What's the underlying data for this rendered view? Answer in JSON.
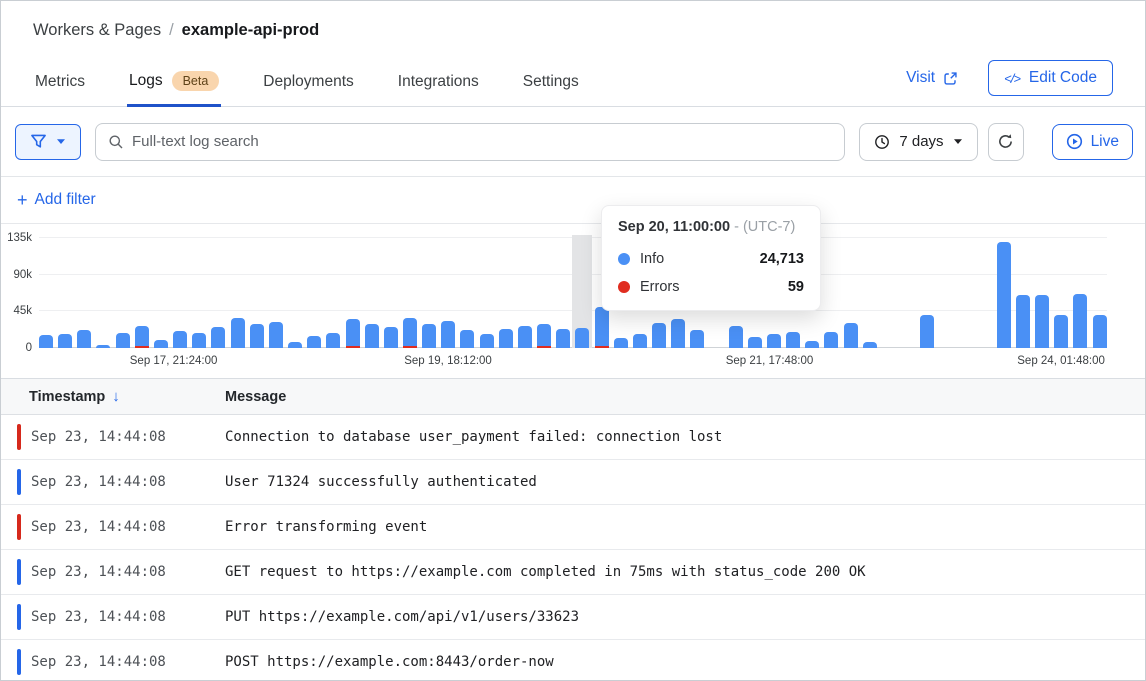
{
  "header": {
    "breadcrumb": {
      "section": "Workers & Pages",
      "separator": "/",
      "current": "example-api-prod"
    },
    "tabs": [
      {
        "label": "Metrics",
        "active": false
      },
      {
        "label": "Logs",
        "badge": "Beta",
        "active": true
      },
      {
        "label": "Deployments",
        "active": false
      },
      {
        "label": "Integrations",
        "active": false
      },
      {
        "label": "Settings",
        "active": false
      }
    ],
    "visit_label": "Visit",
    "edit_code_label": "Edit Code",
    "edit_code_icon": "</>"
  },
  "toolbar": {
    "search_placeholder": "Full-text log search",
    "time_range_label": "7 days",
    "live_label": "Live",
    "add_filter": {
      "icon": "+",
      "label": "Add filter"
    }
  },
  "chart_data": {
    "type": "bar",
    "stacked": true,
    "unit": "thousands of log events",
    "ylim": [
      0,
      139
    ],
    "grid": true,
    "y_ticks": [
      {
        "label": "135k",
        "value": 135
      },
      {
        "label": "90k",
        "value": 90
      },
      {
        "label": "45k",
        "value": 45
      },
      {
        "label": "0",
        "value": 0
      }
    ],
    "x_tick_labels": [
      {
        "label": "Sep 17, 21:24:00",
        "position_pct": 12.6
      },
      {
        "label": "Sep 19, 18:12:00",
        "position_pct": 38.3
      },
      {
        "label": "Sep 21, 17:48:00",
        "position_pct": 68.4
      },
      {
        "label": "Sep 24, 01:48:00",
        "position_pct": 95.7
      }
    ],
    "series_legend": [
      {
        "name": "Info",
        "color": "#4a90f5"
      },
      {
        "name": "Errors",
        "color": "#e02d20"
      }
    ],
    "hover_index": 28,
    "bars": [
      {
        "v": 16
      },
      {
        "v": 17
      },
      {
        "v": 22
      },
      {
        "v": 4
      },
      {
        "v": 19
      },
      {
        "v": 27,
        "err": 2
      },
      {
        "v": 10
      },
      {
        "v": 21
      },
      {
        "v": 19
      },
      {
        "v": 26
      },
      {
        "v": 37
      },
      {
        "v": 30
      },
      {
        "v": 32
      },
      {
        "v": 7
      },
      {
        "v": 15
      },
      {
        "v": 18
      },
      {
        "v": 35,
        "err": 2
      },
      {
        "v": 29
      },
      {
        "v": 26
      },
      {
        "v": 36,
        "err": 2
      },
      {
        "v": 30
      },
      {
        "v": 33
      },
      {
        "v": 22
      },
      {
        "v": 17
      },
      {
        "v": 24
      },
      {
        "v": 27
      },
      {
        "v": 29,
        "err": 2
      },
      {
        "v": 23
      },
      {
        "v": 25
      },
      {
        "v": 50,
        "err": 3
      },
      {
        "v": 12
      },
      {
        "v": 17
      },
      {
        "v": 31
      },
      {
        "v": 36
      },
      {
        "v": 22
      },
      {
        "v": null
      },
      {
        "v": 27
      },
      {
        "v": 13
      },
      {
        "v": 17
      },
      {
        "v": 20
      },
      {
        "v": 9
      },
      {
        "v": 20
      },
      {
        "v": 31
      },
      {
        "v": 8
      },
      {
        "v": null
      },
      {
        "v": null
      },
      {
        "v": 40
      },
      {
        "v": null
      },
      {
        "v": null
      },
      {
        "v": null
      },
      {
        "v": 130
      },
      {
        "v": 65
      },
      {
        "v": 65
      },
      {
        "v": 40
      },
      {
        "v": 66
      },
      {
        "v": 40
      }
    ],
    "tooltip": {
      "time": "Sep 20, 11:00:00",
      "separator": "-",
      "timezone": "(UTC-7)",
      "rows": [
        {
          "label": "Info",
          "value": "24,713",
          "color": "#4a90f5"
        },
        {
          "label": "Errors",
          "value": "59",
          "color": "#e02d20"
        }
      ]
    }
  },
  "log_table": {
    "columns": [
      {
        "label": "Timestamp",
        "sort": "desc",
        "sort_glyph": "↓"
      },
      {
        "label": "Message"
      }
    ],
    "rows": [
      {
        "level": "error",
        "timestamp": "Sep 23, 14:44:08",
        "message": "Connection to database user_payment failed: connection lost"
      },
      {
        "level": "info",
        "timestamp": "Sep 23, 14:44:08",
        "message": "User 71324 successfully authenticated"
      },
      {
        "level": "error",
        "timestamp": "Sep 23, 14:44:08",
        "message": "Error transforming event"
      },
      {
        "level": "info",
        "timestamp": "Sep 23, 14:44:08",
        "message": "GET request to https://example.com completed in 75ms with status_code 200 OK"
      },
      {
        "level": "info",
        "timestamp": "Sep 23, 14:44:08",
        "message": "PUT https://example.com/api/v1/users/33623"
      },
      {
        "level": "info",
        "timestamp": "Sep 23, 14:44:08",
        "message": "POST https://example.com:8443/order-now"
      }
    ]
  },
  "colors": {
    "accent_blue": "#2566e8",
    "tab_underline": "#1f52c9",
    "bar_info": "#4a90f5",
    "bar_error": "#e02d20",
    "indicator_error": "#d6291c",
    "indicator_info": "#2566e8",
    "hover_column": "#e3e4e6",
    "beta_badge_bg": "#f9d5ad",
    "beta_badge_text": "#5f4319"
  }
}
